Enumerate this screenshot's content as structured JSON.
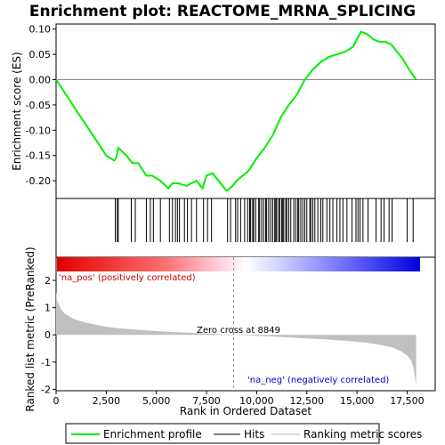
{
  "chart_data": {
    "type": "line",
    "title": "Enrichment plot: REACTOME_MRNA_SPLICING",
    "top_panel": {
      "ylabel": "Enrichment score (ES)",
      "ylim": [
        -0.235,
        0.11
      ],
      "yticks": [
        0.1,
        0.05,
        0.0,
        -0.05,
        -0.1,
        -0.15,
        -0.2
      ],
      "ytick_labels": [
        "0.10",
        "0.05",
        "0.00",
        "-0.05",
        "-0.10",
        "-0.15",
        "-0.20"
      ],
      "series": [
        {
          "name": "Enrichment profile",
          "color": "#00ee00",
          "x": [
            0,
            500,
            1000,
            1500,
            2000,
            2500,
            2900,
            3000,
            3100,
            3500,
            3800,
            4100,
            4500,
            4800,
            5200,
            5600,
            5800,
            6100,
            6500,
            7000,
            7300,
            7500,
            7800,
            8200,
            8500,
            8800,
            9000,
            9300,
            9600,
            10000,
            10400,
            10800,
            11200,
            11600,
            12000,
            12400,
            12800,
            13200,
            13600,
            14000,
            14400,
            14800,
            15000,
            15200,
            15500,
            15800,
            16100,
            16400,
            16700,
            17000,
            17300,
            17600,
            17950
          ],
          "y": [
            0.0,
            -0.03,
            -0.06,
            -0.09,
            -0.12,
            -0.15,
            -0.16,
            -0.155,
            -0.135,
            -0.15,
            -0.165,
            -0.165,
            -0.19,
            -0.19,
            -0.2,
            -0.215,
            -0.205,
            -0.205,
            -0.21,
            -0.2,
            -0.215,
            -0.19,
            -0.185,
            -0.205,
            -0.22,
            -0.21,
            -0.2,
            -0.19,
            -0.18,
            -0.155,
            -0.135,
            -0.11,
            -0.075,
            -0.05,
            -0.03,
            0.0,
            0.02,
            0.035,
            0.045,
            0.05,
            0.055,
            0.065,
            0.08,
            0.095,
            0.09,
            0.08,
            0.075,
            0.075,
            0.07,
            0.055,
            0.04,
            0.02,
            0.0
          ]
        }
      ]
    },
    "hits": {
      "name": "Hits",
      "positions": [
        2950,
        3050,
        3100,
        3750,
        3950,
        4500,
        4700,
        4850,
        5200,
        5650,
        5800,
        5950,
        6050,
        6150,
        6400,
        6550,
        6750,
        7000,
        7350,
        7550,
        7750,
        8550,
        8700,
        8950,
        9050,
        9200,
        9400,
        9550,
        9650,
        9700,
        9800,
        9850,
        9950,
        10100,
        10150,
        10250,
        10350,
        10450,
        10500,
        10600,
        10700,
        10800,
        10900,
        10950,
        11000,
        11100,
        11150,
        11250,
        11300,
        11350,
        11450,
        11500,
        11600,
        11700,
        11850,
        11950,
        12050,
        12100,
        12200,
        12300,
        12400,
        12500,
        12650,
        12700,
        12800,
        12900,
        13050,
        13200,
        13300,
        13500,
        13650,
        13800,
        14000,
        14150,
        14300,
        14500,
        14750,
        14950,
        15050,
        15150,
        15300,
        15550,
        15950,
        16200,
        16350,
        16600,
        16750,
        17500,
        17800
      ]
    },
    "rank_metric": {
      "name": "Ranking metric scores",
      "ylabel": "Ranked list metric (PreRanked)",
      "xlabel": "Rank in Ordered Dataset",
      "ylim": [
        -2.05,
        2.85
      ],
      "yticks": [
        2,
        1,
        0,
        -1,
        -2
      ],
      "xlim": [
        0,
        18900
      ],
      "xticks": [
        0,
        2500,
        5000,
        7500,
        10000,
        12500,
        15000,
        17500
      ],
      "xtick_labels": [
        "0",
        "2,500",
        "5,000",
        "7,500",
        "10,000",
        "12,500",
        "15,000",
        "17,500"
      ],
      "x": [
        0,
        50,
        200,
        400,
        700,
        1000,
        1500,
        2000,
        2500,
        3000,
        4000,
        5000,
        6000,
        7000,
        8000,
        8849,
        9500,
        10500,
        11500,
        12500,
        13500,
        14500,
        15500,
        16200,
        16800,
        17200,
        17500,
        17700,
        17800,
        17850,
        17900,
        17950
      ],
      "y": [
        1.6,
        1.25,
        1.0,
        0.8,
        0.65,
        0.55,
        0.45,
        0.37,
        0.3,
        0.25,
        0.19,
        0.14,
        0.1,
        0.07,
        0.03,
        0.0,
        -0.02,
        -0.05,
        -0.09,
        -0.13,
        -0.17,
        -0.22,
        -0.29,
        -0.37,
        -0.47,
        -0.6,
        -0.75,
        -0.95,
        -1.15,
        -1.35,
        -1.6,
        -1.9
      ],
      "zero_cross_label": "Zero cross at 8849",
      "pos_label": "'na_pos' (positively correlated)",
      "neg_label": "'na_neg' (negatively correlated)"
    },
    "legend": [
      {
        "label": "Enrichment profile",
        "color": "#00ee00"
      },
      {
        "label": "Hits",
        "color": "#000000"
      },
      {
        "label": "Ranking metric scores",
        "color": "#bbbbbb"
      }
    ],
    "colors": {
      "profile": "#00ee00",
      "pos_label": "#cc0000",
      "neg_label": "#0000cc",
      "metric_fill": "#c0c0c0"
    }
  }
}
